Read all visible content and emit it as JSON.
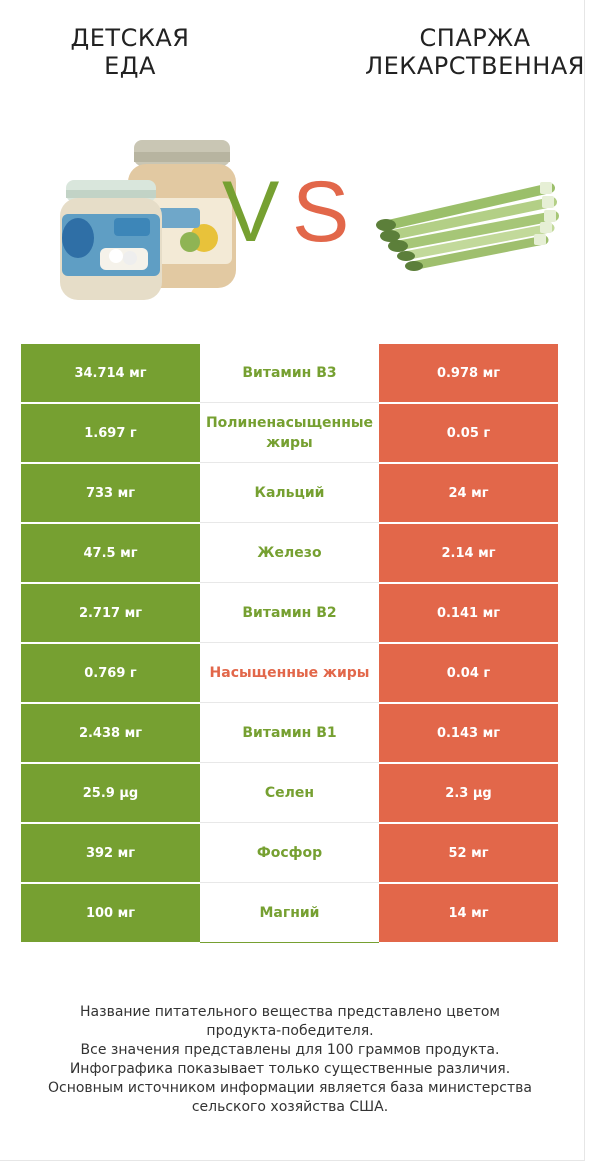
{
  "header": {
    "left_title": "ДЕТСКАЯ\nЕДА",
    "right_title": "СПАРЖА\nЛЕКАРСТВЕННАЯ",
    "vs_v": "V",
    "vs_s": "S"
  },
  "colors": {
    "left_winner": "#76a031",
    "right_winner": "#e2674a"
  },
  "images": {
    "left": "baby-food-jars-image",
    "right": "asparagus-image"
  },
  "rows": [
    {
      "left": "34.714 мг",
      "nutrient": "Витамин B3",
      "right": "0.978 мг",
      "winner": "left"
    },
    {
      "left": "1.697 г",
      "nutrient": "Полиненасыщенные жиры",
      "right": "0.05 г",
      "winner": "left"
    },
    {
      "left": "733 мг",
      "nutrient": "Кальций",
      "right": "24 мг",
      "winner": "left"
    },
    {
      "left": "47.5 мг",
      "nutrient": "Железо",
      "right": "2.14 мг",
      "winner": "left"
    },
    {
      "left": "2.717 мг",
      "nutrient": "Витамин B2",
      "right": "0.141 мг",
      "winner": "left"
    },
    {
      "left": "0.769 г",
      "nutrient": "Насыщенные жиры",
      "right": "0.04 г",
      "winner": "right"
    },
    {
      "left": "2.438 мг",
      "nutrient": "Витамин B1",
      "right": "0.143 мг",
      "winner": "left"
    },
    {
      "left": "25.9 µg",
      "nutrient": "Селен",
      "right": "2.3 µg",
      "winner": "left"
    },
    {
      "left": "392 мг",
      "nutrient": "Фосфор",
      "right": "52 мг",
      "winner": "left"
    },
    {
      "left": "100 мг",
      "nutrient": "Магний",
      "right": "14 мг",
      "winner": "left"
    }
  ],
  "footnote": [
    "Название питательного вещества представлено цветом",
    "продукта-победителя.",
    "Все значения представлены для 100 граммов продукта.",
    "Инфографика показывает только существенные различия.",
    "Основным источником информации является база министерства",
    "сельского хозяйства США."
  ]
}
